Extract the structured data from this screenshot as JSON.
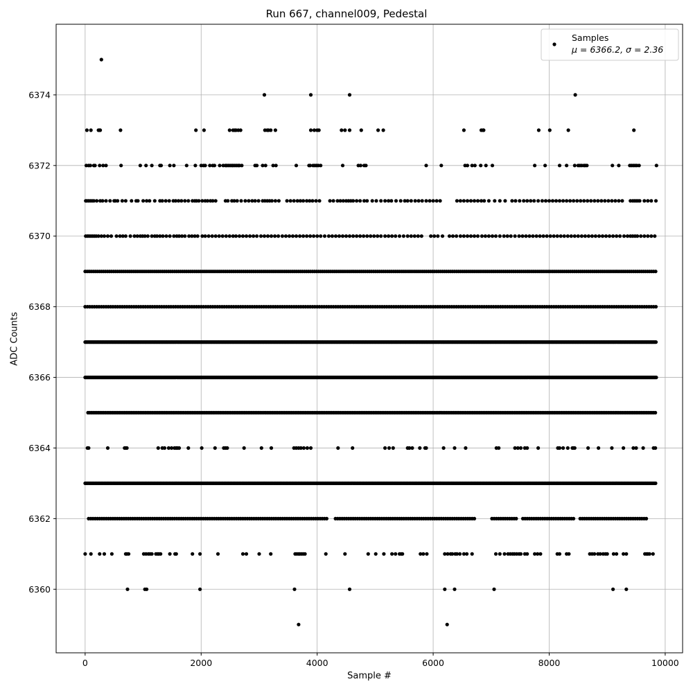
{
  "chart_data": {
    "type": "scatter",
    "title": "Run 667, channel009, Pedestal",
    "xlabel": "Sample #",
    "ylabel": "ADC Counts",
    "xlim": [
      -500,
      10300
    ],
    "ylim": [
      6358.2,
      6376.0
    ],
    "xticks": [
      0,
      2000,
      4000,
      6000,
      8000,
      10000
    ],
    "xtick_labels": [
      "0",
      "2000",
      "4000",
      "6000",
      "8000",
      "10000"
    ],
    "yticks": [
      6360,
      6362,
      6364,
      6366,
      6368,
      6370,
      6372,
      6374
    ],
    "ytick_labels": [
      "6360",
      "6362",
      "6364",
      "6366",
      "6368",
      "6370",
      "6372",
      "6374"
    ],
    "grid": true,
    "legend": {
      "placement": "upper-right",
      "entries": [
        {
          "label": "Samples",
          "stat_line": "μ = 6366.2, σ = 2.36"
        }
      ]
    },
    "series": [
      {
        "name": "Samples",
        "color": "#000000",
        "marker": "filled-circle",
        "n_samples": 9850,
        "x_range": [
          0,
          9850
        ],
        "mean": 6366.2,
        "sigma": 2.36,
        "rows": [
          {
            "y": 6375,
            "x": [
              280
            ]
          },
          {
            "y": 6374,
            "x": [
              3090,
              3890,
              4560,
              8450
            ]
          },
          {
            "y": 6373,
            "x": [
              30,
              100,
              230,
              250,
              260,
              610,
              1910,
              2050,
              2490,
              2550,
              2580,
              2600,
              2640,
              2680,
              3100,
              3140,
              3160,
              3200,
              3280,
              3890,
              3950,
              4000,
              4030,
              4420,
              4480,
              4560,
              4760,
              5050,
              5140,
              6530,
              6830,
              6860,
              6870,
              7820,
              8010,
              8330,
              9460
            ]
          },
          {
            "y": 6372,
            "x": [
              20,
              60,
              90,
              150,
              170,
              250,
              310,
              360,
              620,
              950,
              1050,
              1150,
              1290,
              1310,
              1460,
              1530,
              1750,
              1900,
              2000,
              2040,
              2070,
              2150,
              2200,
              2230,
              2320,
              2380,
              2420,
              2440,
              2470,
              2500,
              2530,
              2550,
              2580,
              2610,
              2640,
              2660,
              2700,
              2930,
              2960,
              3060,
              3110,
              3240,
              3290,
              3640,
              3860,
              3880,
              3930,
              3960,
              3990,
              4020,
              4060,
              4440,
              4710,
              4750,
              4810,
              4840,
              5880,
              6140,
              6550,
              6590,
              6670,
              6720,
              6820,
              6910,
              7020,
              7750,
              7930,
              8180,
              8300,
              8440,
              8500,
              8530,
              8560,
              8600,
              8620,
              8650,
              9090,
              9200,
              9390,
              9420,
              9450,
              9480,
              9510,
              9550,
              9850
            ]
          },
          {
            "y": 6370,
            "x": [
              10,
              40,
              70,
              100,
              130,
              160,
              190,
              230,
              280,
              330,
              390,
              450,
              540,
              600,
              650,
              700,
              780,
              850,
              900,
              950,
              990,
              1030,
              1080,
              1150,
              1200,
              1240,
              1290,
              1340,
              1400,
              1460,
              1530,
              1580,
              1620,
              1670,
              1720,
              1790,
              1840,
              1890,
              1940,
              2020,
              2070,
              2130,
              2190,
              2250,
              2310,
              2370,
              2430,
              2490,
              2550,
              2600,
              2660,
              2720,
              2780,
              2840,
              2900,
              2960,
              3030,
              3090,
              3150,
              3210,
              3270,
              3330,
              3400,
              3460,
              3520,
              3580,
              3640,
              3700,
              3760,
              3820,
              3880,
              3940,
              4000,
              4060,
              4130,
              4200,
              4260,
              4320,
              4380,
              4440,
              4500,
              4560,
              4620,
              4680,
              4740,
              4800,
              4860,
              4920,
              4980,
              5040,
              5100,
              5170,
              5230,
              5290,
              5350,
              5420,
              5490,
              5560,
              5620,
              5680,
              5740,
              5800,
              5960,
              6020,
              6080,
              6160,
              6280,
              6340,
              6400,
              6470,
              6530,
              6590,
              6650,
              6710,
              6770,
              6840,
              6900,
              6960,
              7020,
              7080,
              7150,
              7220,
              7280,
              7340,
              7410,
              7480,
              7540,
              7600,
              7660,
              7720,
              7780,
              7840,
              7900,
              7960,
              8020,
              8080,
              8140,
              8200,
              8260,
              8320,
              8380,
              8440,
              8500,
              8560,
              8620,
              8680,
              8740,
              8800,
              8860,
              8920,
              8980,
              9040,
              9100,
              9160,
              9220,
              9290,
              9350,
              9400,
              9440,
              9480,
              9520,
              9580,
              9640,
              9700,
              9760,
              9820
            ]
          },
          {
            "y": 6371,
            "x": [
              10,
              30,
              60,
              90,
              120,
              150,
              200,
              260,
              300,
              360,
              430,
              500,
              520,
              560,
              640,
              700,
              800,
              880,
              910,
              1000,
              1060,
              1110,
              1200,
              1290,
              1330,
              1390,
              1450,
              1520,
              1560,
              1610,
              1660,
              1720,
              1780,
              1850,
              1890,
              1920,
              1960,
              2020,
              2070,
              2110,
              2160,
              2200,
              2250,
              2420,
              2460,
              2530,
              2570,
              2620,
              2690,
              2760,
              2820,
              2880,
              2930,
              2990,
              3060,
              3100,
              3140,
              3180,
              3220,
              3280,
              3340,
              3480,
              3540,
              3600,
              3660,
              3710,
              3760,
              3820,
              3870,
              3920,
              3980,
              4040,
              4220,
              4280,
              4350,
              4400,
              4450,
              4500,
              4540,
              4580,
              4620,
              4680,
              4740,
              4810,
              4860,
              4950,
              5020,
              5100,
              5170,
              5230,
              5280,
              5360,
              5440,
              5510,
              5560,
              5620,
              5690,
              5750,
              5810,
              5880,
              5940,
              6000,
              6060,
              6120,
              6410,
              6470,
              6530,
              6590,
              6650,
              6710,
              6770,
              6830,
              6880,
              6960,
              7060,
              7150,
              7240,
              7360,
              7420,
              7490,
              7560,
              7620,
              7680,
              7740,
              7810,
              7880,
              7940,
              8000,
              8060,
              8120,
              8180,
              8240,
              8300,
              8360,
              8420,
              8480,
              8540,
              8600,
              8660,
              8720,
              8780,
              8840,
              8900,
              8960,
              9020,
              9080,
              9140,
              9200,
              9260,
              9400,
              9440,
              9470,
              9500,
              9530,
              9560,
              9640,
              9700,
              9760,
              9840
            ]
          },
          {
            "y": 6364,
            "x": [
              40,
              60,
              390,
              680,
              700,
              720,
              1260,
              1330,
              1370,
              1440,
              1490,
              1540,
              1570,
              1590,
              1620,
              1780,
              2010,
              2240,
              2390,
              2420,
              2450,
              2740,
              3040,
              3210,
              3600,
              3640,
              3680,
              3720,
              3770,
              3830,
              3890,
              4360,
              4610,
              5170,
              5240,
              5310,
              5560,
              5590,
              5640,
              5770,
              5860,
              5880,
              6180,
              6370,
              6560,
              7090,
              7130,
              7410,
              7460,
              7510,
              7580,
              7620,
              7810,
              8150,
              8180,
              8240,
              8320,
              8400,
              8420,
              8440,
              8670,
              8850,
              9080,
              9280,
              9450,
              9500,
              9620,
              9800,
              9830
            ]
          },
          {
            "y": 6361,
            "x": [
              0,
              100,
              250,
              330,
              460,
              700,
              720,
              750,
              1010,
              1050,
              1090,
              1120,
              1150,
              1220,
              1250,
              1270,
              1300,
              1460,
              1550,
              1570,
              1850,
              1980,
              2290,
              2720,
              2780,
              3000,
              3200,
              3620,
              3650,
              3680,
              3700,
              3730,
              3760,
              3790,
              4150,
              4480,
              4880,
              5010,
              5150,
              5290,
              5350,
              5420,
              5450,
              5470,
              5780,
              5830,
              5890,
              6200,
              6250,
              6300,
              6330,
              6380,
              6410,
              6460,
              6530,
              6580,
              6670,
              7080,
              7150,
              7230,
              7290,
              7330,
              7370,
              7400,
              7440,
              7480,
              7510,
              7580,
              7620,
              7750,
              7800,
              7850,
              8140,
              8180,
              8300,
              8340,
              8700,
              8740,
              8780,
              8840,
              8880,
              8930,
              8970,
              9000,
              9110,
              9160,
              9280,
              9330,
              9650,
              9680,
              9700,
              9730,
              9790
            ]
          },
          {
            "y": 6360,
            "x": [
              730,
              1030,
              1060,
              1980,
              3610,
              4560,
              6200,
              6370,
              7050,
              9100,
              9330
            ]
          },
          {
            "y": 6359,
            "x": [
              3680,
              6240
            ]
          }
        ],
        "dense_bands": [
          {
            "y": 6369,
            "x_start": 0,
            "x_end": 9850,
            "spacing": 35
          },
          {
            "y": 6368,
            "x_start": 0,
            "x_end": 9850,
            "spacing": 40
          },
          {
            "y": 6367,
            "x_start": 0,
            "x_end": 9850,
            "spacing": 16
          },
          {
            "y": 6366,
            "x_start": 0,
            "x_end": 9850,
            "spacing": 18
          },
          {
            "y": 6365,
            "x_start": 50,
            "x_end": 9850,
            "spacing": 30
          },
          {
            "y": 6363,
            "x_start": 0,
            "x_end": 9850,
            "spacing": 22
          },
          {
            "y": 6362,
            "x_start": 60,
            "x_end": 9700,
            "spacing": 38,
            "gaps": [
              [
                4200,
                4280
              ],
              [
                6720,
                6980
              ],
              [
                7440,
                7520
              ],
              [
                8440,
                8520
              ]
            ]
          }
        ]
      }
    ]
  }
}
